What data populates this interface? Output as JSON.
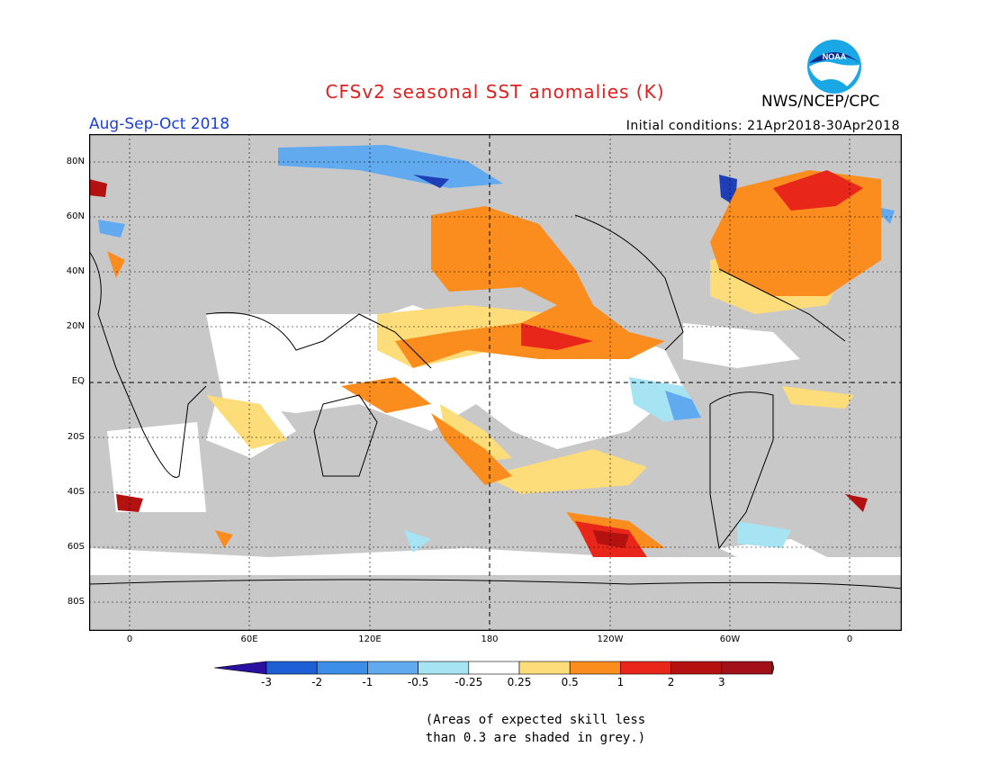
{
  "header": {
    "title": "CFSv2 seasonal SST anomalies (K)",
    "season": "Aug-Sep-Oct 2018",
    "agency": "NWS/NCEP/CPC",
    "initial_conditions": "Initial conditions: 21Apr2018-30Apr2018",
    "logo_text": "NOAA"
  },
  "map": {
    "lat_labels": [
      "80N",
      "60N",
      "40N",
      "20N",
      "EQ",
      "20S",
      "40S",
      "60S",
      "80S"
    ],
    "lon_labels": [
      "0",
      "60E",
      "120E",
      "180",
      "120W",
      "60W",
      "0"
    ],
    "land_color": "#c8c8c8",
    "ocean_neutral_color": "#ffffff"
  },
  "colorbar": {
    "ticks": [
      "-3",
      "-2",
      "-1",
      "-0.5",
      "-0.25",
      "0.25",
      "0.5",
      "1",
      "2",
      "3"
    ],
    "colors": [
      "#2a0fa0",
      "#1f5fd6",
      "#3c8ee8",
      "#62aaf0",
      "#a6e4f4",
      "#ffffff",
      "#fddc7a",
      "#fb8c1e",
      "#e8261a",
      "#b41111",
      "#a2101a",
      "#6b4a3a"
    ]
  },
  "footnote": {
    "line1": "(Areas of expected skill less",
    "line2": "than 0.3 are shaded in grey.)"
  }
}
